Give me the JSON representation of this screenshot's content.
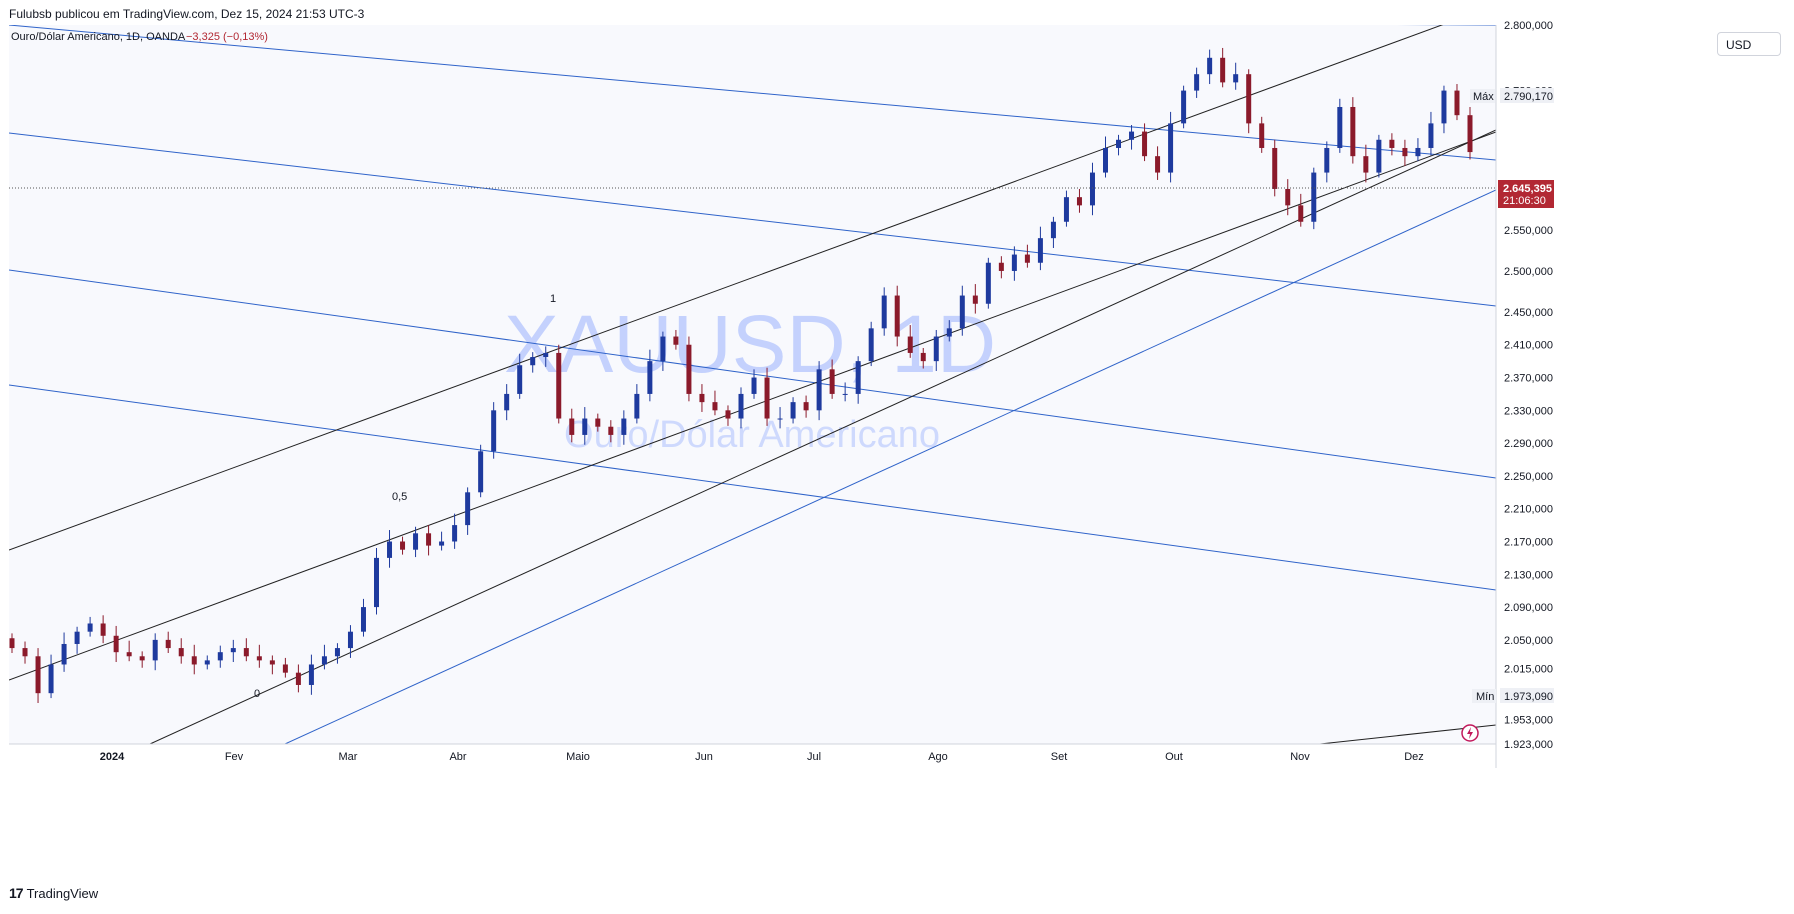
{
  "header": {
    "publish_line": "Fulubsb publicou em TradingView.com, Dez 15, 2024 21:53 UTC-3"
  },
  "legend": {
    "symbol_line": "Ouro/Dólar Americano, 1D, OANDA",
    "change": "−3,325 (−0,13%)"
  },
  "currency_button": "USD",
  "watermark": {
    "ticker": "XAUUSD, 1D",
    "name": "Ouro/Dólar Americano"
  },
  "price_axis": {
    "labels": [
      "2.800,000",
      "2.720,000",
      "2.600,000",
      "2.550,000",
      "2.500,000",
      "2.450,000",
      "2.410,000",
      "2.370,000",
      "2.330,000",
      "2.290,000",
      "2.250,000",
      "2.210,000",
      "2.170,000",
      "2.130,000",
      "2.090,000",
      "2.050,000",
      "2.015,000",
      "1.983,000",
      "1.953,000",
      "1.923,000"
    ],
    "max_tag": {
      "label": "Máx",
      "value": "2.790,170"
    },
    "min_tag": {
      "label": "Mín",
      "value": "1.973,090"
    },
    "last_price": {
      "value": "2.645,395",
      "countdown": "21:06:30",
      "color": "#b22833"
    }
  },
  "time_axis": {
    "labels": [
      "2024",
      "Fev",
      "Mar",
      "Abr",
      "Maio",
      "Jun",
      "Jul",
      "Ago",
      "Set",
      "Out",
      "Nov",
      "Dez"
    ]
  },
  "fib_labels": [
    "1",
    "0,5",
    "0"
  ],
  "footer": {
    "brand": "TradingView"
  },
  "colors": {
    "bull": "#1e3a9e",
    "bear": "#8b1a2b",
    "channel_blue": "#2f63c9",
    "channel_black": "#222222",
    "background": "#f8f9fd",
    "watermark": "#3d6bff"
  },
  "chart_data": {
    "type": "candlestick",
    "symbol": "Ouro/Dólar Americano",
    "interval": "1D",
    "price_range": [
      1923,
      2800
    ],
    "approx_closes": [
      2040,
      2030,
      1985,
      2020,
      2045,
      2060,
      2070,
      2055,
      2035,
      2030,
      2025,
      2050,
      2040,
      2030,
      2020,
      2025,
      2035,
      2040,
      2030,
      2025,
      2020,
      2010,
      1995,
      2020,
      2030,
      2040,
      2060,
      2090,
      2150,
      2170,
      2160,
      2180,
      2165,
      2170,
      2190,
      2230,
      2280,
      2330,
      2350,
      2385,
      2395,
      2400,
      2320,
      2300,
      2320,
      2310,
      2300,
      2320,
      2350,
      2390,
      2420,
      2410,
      2350,
      2340,
      2330,
      2320,
      2350,
      2370,
      2320,
      2320,
      2340,
      2330,
      2380,
      2350,
      2350,
      2390,
      2430,
      2470,
      2420,
      2400,
      2390,
      2420,
      2430,
      2470,
      2460,
      2510,
      2500,
      2520,
      2510,
      2540,
      2560,
      2590,
      2580,
      2620,
      2650,
      2660,
      2670,
      2640,
      2620,
      2680,
      2720,
      2740,
      2760,
      2730,
      2740,
      2680,
      2650,
      2600,
      2580,
      2560,
      2620,
      2650,
      2700,
      2640,
      2620,
      2660,
      2650,
      2640,
      2650,
      2680,
      2720,
      2690,
      2645
    ]
  }
}
